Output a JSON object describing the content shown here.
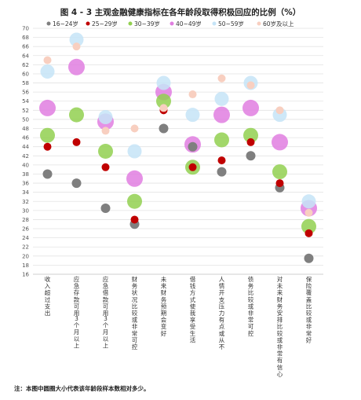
{
  "chart_data": {
    "type": "scatter",
    "title": "图 4 - 3 主观金融健康指标在各年龄段取得积极回应的比例（%）",
    "ylim": [
      16,
      70
    ],
    "ytick_step": 2,
    "grid": true,
    "legend_position": "top",
    "categories": [
      "收入超过支出",
      "应急存款可用3个月以上",
      "应急借款可用3个月以上",
      "财务状况比较或非常可控",
      "未来财务预期会变好",
      "借钱方式使我享受生活",
      "人情开支压力有点或从不",
      "债务比较或非常可控",
      "对未来财务安排比较或非常有信心",
      "保险覆盖比较或非常好"
    ],
    "series": [
      {
        "name": "16~24岁",
        "color": "#7f7f7f",
        "size": 6,
        "values": [
          38,
          36,
          30.5,
          27,
          48,
          44,
          38.5,
          42,
          35,
          19.5
        ]
      },
      {
        "name": "25~29岁",
        "color": "#c00000",
        "size": 5,
        "values": [
          44,
          45,
          39.5,
          28,
          52,
          39.5,
          41,
          45,
          36,
          25
        ]
      },
      {
        "name": "30~39岁",
        "color": "#92d050",
        "size": 9.5,
        "values": [
          46.5,
          51,
          43,
          32,
          54,
          39.5,
          45.5,
          46.5,
          38.5,
          26.5
        ]
      },
      {
        "name": "40~49岁",
        "color": "#e07ee0",
        "size": 10.5,
        "values": [
          52.5,
          61.5,
          49.5,
          37,
          56,
          44.5,
          51,
          52.5,
          45,
          30.5
        ]
      },
      {
        "name": "50~59岁",
        "color": "#c5e4f7",
        "size": 9,
        "values": [
          60.5,
          67.5,
          50.5,
          43,
          58,
          51,
          54.5,
          58,
          51,
          32
        ]
      },
      {
        "name": "60岁及以上",
        "color": "#f8cfc0",
        "size": 5,
        "values": [
          63,
          66,
          47.5,
          48,
          52.5,
          55.5,
          59,
          57.5,
          52,
          29.5
        ]
      }
    ]
  },
  "note": "注：本图中圆圈大小代表该年龄段样本数相对多少。"
}
